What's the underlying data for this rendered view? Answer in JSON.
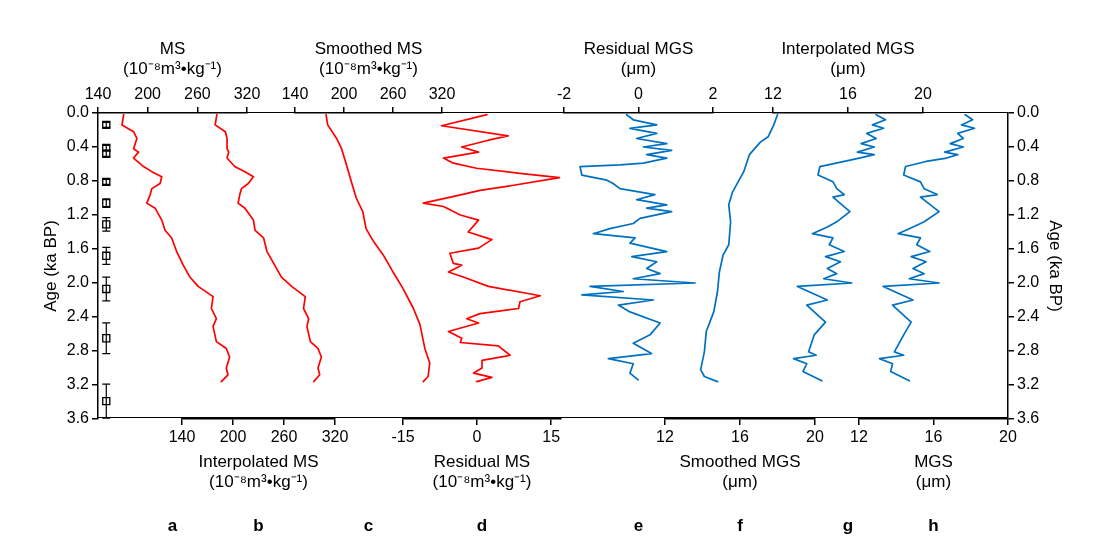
{
  "chart_data": [
    {
      "type": "line",
      "xlabel": "MS\n(10⁻⁸m³•kg⁻¹)",
      "xlim": [
        140,
        320
      ],
      "xticks": [
        140,
        200,
        260,
        320
      ],
      "ylabel": "Age (ka BP)",
      "ylim": [
        3.6,
        0
      ],
      "yticks": [
        {
          "value": 0,
          "label": "0.0"
        },
        0.4,
        0.8,
        1.2,
        1.6,
        {
          "value": 2,
          "label": "2.0"
        },
        2.4,
        2.8,
        3.2,
        3.6
      ],
      "annotations": [
        "a"
      ],
      "series": [
        {
          "color": "#ff0000",
          "x": [
            171,
            169,
            183,
            187,
            183,
            189,
            183,
            195,
            205,
            217,
            215,
            205,
            203,
            199,
            209,
            217,
            221,
            229,
            235,
            243,
            251,
            261,
            279,
            277,
            283,
            279,
            283,
            295,
            299,
            295,
            297,
            289
          ],
          "values": [
            0.02,
            0.14,
            0.22,
            0.3,
            0.42,
            0.46,
            0.53,
            0.63,
            0.69,
            0.75,
            0.83,
            0.89,
            0.96,
            1.06,
            1.12,
            1.26,
            1.38,
            1.47,
            1.63,
            1.79,
            1.93,
            2.04,
            2.16,
            2.3,
            2.42,
            2.51,
            2.69,
            2.77,
            2.87,
            3.0,
            3.08,
            3.16
          ]
        },
        {
          "type": "scatter",
          "marker": "square",
          "color": "#000000",
          "x": [
            150,
            150,
            150,
            150,
            150,
            150,
            150,
            150,
            150,
            150
          ],
          "values": [
            0.14,
            0.41,
            0.48,
            0.81,
            1.06,
            1.31,
            1.68,
            2.07,
            2.65,
            3.39
          ],
          "errors": [
            0.03,
            0.03,
            0.03,
            0.03,
            0.05,
            0.08,
            0.1,
            0.14,
            0.18,
            0.2
          ]
        }
      ]
    },
    {
      "type": "line",
      "color": "#ff0000",
      "tick_labels": "x",
      "xlabel": "Interpolated MS\n(10⁻⁸m³•kg⁻¹)",
      "xlim": [
        140,
        320
      ],
      "xticks": [
        140,
        200,
        260,
        320
      ],
      "ylim": [
        3.6,
        0
      ],
      "annotations": [
        "b"
      ],
      "x": [
        181,
        179,
        191,
        193,
        193,
        195,
        193,
        202,
        214,
        224,
        218,
        210,
        208,
        206,
        214,
        224,
        226,
        236,
        240,
        249,
        257,
        269,
        285,
        283,
        289,
        287,
        291,
        300,
        304,
        300,
        302,
        295
      ],
      "values": [
        0.02,
        0.14,
        0.22,
        0.3,
        0.42,
        0.46,
        0.53,
        0.63,
        0.69,
        0.75,
        0.83,
        0.89,
        0.96,
        1.06,
        1.12,
        1.26,
        1.38,
        1.47,
        1.63,
        1.79,
        1.93,
        2.04,
        2.16,
        2.3,
        2.42,
        2.51,
        2.69,
        2.77,
        2.87,
        3.0,
        3.08,
        3.16
      ]
    },
    {
      "type": "line",
      "color": "#ff0000",
      "tick_labels": "x",
      "xlabel": "Smoothed MS\n(10⁻⁸m³•kg⁻¹)",
      "xlim": [
        140,
        320
      ],
      "xticks": [
        140,
        200,
        260,
        320
      ],
      "ylim": [
        3.6,
        0
      ],
      "annotations": [
        "c"
      ],
      "x": [
        178,
        180,
        191,
        197,
        203,
        209,
        215,
        223,
        227,
        236,
        248,
        260,
        272,
        285,
        293,
        299,
        305,
        303,
        297
      ],
      "values": [
        0.02,
        0.14,
        0.3,
        0.42,
        0.61,
        0.81,
        1.0,
        1.16,
        1.36,
        1.51,
        1.67,
        1.87,
        2.06,
        2.3,
        2.49,
        2.77,
        2.94,
        3.1,
        3.16
      ]
    },
    {
      "type": "line",
      "color": "#ff0000",
      "tick_labels": "x",
      "xlabel": "Residual MS\n(10⁻⁸m³•kg⁻¹)",
      "xlim": [
        -15,
        17
      ],
      "xticks": [
        -15,
        0,
        15
      ],
      "ylim": [
        3.6,
        0
      ],
      "annotations": [
        "d"
      ],
      "x": [
        2.0,
        -7.2,
        6.3,
        2.3,
        -3.1,
        0.3,
        -6.8,
        -4.8,
        -0.1,
        8.7,
        16.7,
        7.4,
        0.6,
        -3.8,
        -10.9,
        -6.8,
        -3.4,
        0.3,
        -1.8,
        3.0,
        0.3,
        -5.5,
        -4.8,
        -3.1,
        -5.8,
        -2.8,
        2.3,
        12.8,
        8.7,
        8.4,
        0.6,
        -2.1,
        0.3,
        -5.8,
        -3.1,
        -3.4,
        4.3,
        6.7,
        1.0,
        1.0,
        -0.7,
        3.0,
        -0.1
      ],
      "values": [
        0.02,
        0.15,
        0.27,
        0.32,
        0.4,
        0.46,
        0.53,
        0.59,
        0.65,
        0.71,
        0.76,
        0.85,
        0.91,
        0.97,
        1.06,
        1.1,
        1.2,
        1.26,
        1.4,
        1.49,
        1.59,
        1.65,
        1.77,
        1.79,
        1.87,
        1.93,
        2.04,
        2.15,
        2.22,
        2.3,
        2.36,
        2.42,
        2.47,
        2.57,
        2.65,
        2.7,
        2.74,
        2.85,
        2.91,
        3.0,
        3.06,
        3.11,
        3.16
      ]
    },
    {
      "type": "line",
      "color": "#0070c0",
      "tick_labels": "x",
      "xlabel": "Residual MGS\n(μm)",
      "xlim": [
        -2,
        2
      ],
      "xticks": [
        -2,
        0,
        2
      ],
      "ylim": [
        3.6,
        0
      ],
      "annotations": [
        "e"
      ],
      "x": [
        -0.32,
        -0.14,
        0.49,
        -0.23,
        0.49,
        -0.05,
        0.76,
        0.13,
        0.89,
        0.22,
        0.76,
        0.13,
        -0.5,
        -1.57,
        -1.52,
        -0.85,
        -0.68,
        -0.5,
        0.44,
        -0.05,
        0.76,
        0.22,
        0.89,
        0.04,
        -0.14,
        -0.77,
        -1.21,
        -0.09,
        -0.23,
        0.76,
        -0.18,
        0.49,
        0.22,
        0.58,
        -0.14,
        1.52,
        -1.3,
        -0.41,
        -1.52,
        0.4,
        -0.54,
        -0.23,
        0.58,
        0.31,
        -0.14,
        0.35,
        -0.81,
        -0.14,
        -0.23,
        -0.01
      ],
      "values": [
        0.02,
        0.08,
        0.14,
        0.18,
        0.24,
        0.3,
        0.36,
        0.4,
        0.44,
        0.49,
        0.53,
        0.59,
        0.61,
        0.63,
        0.73,
        0.79,
        0.83,
        0.89,
        0.96,
        1.02,
        1.08,
        1.12,
        1.16,
        1.24,
        1.3,
        1.36,
        1.42,
        1.47,
        1.53,
        1.63,
        1.69,
        1.75,
        1.83,
        1.89,
        1.95,
        2.0,
        2.04,
        2.1,
        2.14,
        2.2,
        2.26,
        2.34,
        2.47,
        2.61,
        2.71,
        2.83,
        2.89,
        2.95,
        3.06,
        3.14
      ]
    },
    {
      "type": "line",
      "color": "#0070c0",
      "tick_labels": "x",
      "xlabel": "Smoothed MGS\n(μm)",
      "xlim": [
        12,
        20
      ],
      "xticks": [
        12,
        16,
        20
      ],
      "ylim": [
        3.6,
        0
      ],
      "annotations": [
        "f"
      ],
      "x": [
        18.0,
        17.8,
        17.5,
        17.1,
        16.5,
        16.2,
        15.6,
        15.4,
        15.5,
        15.4,
        15.1,
        14.9,
        14.8,
        14.6,
        14.2,
        14.1,
        13.9,
        14.1,
        14.8
      ],
      "values": [
        0.02,
        0.14,
        0.28,
        0.34,
        0.49,
        0.69,
        0.93,
        1.08,
        1.28,
        1.55,
        1.67,
        1.87,
        2.1,
        2.34,
        2.57,
        2.81,
        3.02,
        3.1,
        3.16
      ]
    },
    {
      "type": "line",
      "color": "#0070c0",
      "tick_labels": "x",
      "xlabel": "Interpolated MGS\n(μm)",
      "xlim": [
        12,
        20
      ],
      "xticks": [
        12,
        16,
        20
      ],
      "ylim": [
        3.6,
        0
      ],
      "annotations": [
        "g"
      ],
      "x": [
        17.5,
        18.0,
        17.3,
        17.9,
        17.0,
        17.5,
        16.7,
        17.4,
        16.5,
        17.4,
        16.6,
        15.8,
        14.5,
        14.4,
        15.2,
        15.4,
        15.8,
        15.2,
        16.1,
        15.4,
        14.9,
        14.1,
        15.2,
        15.0,
        15.8,
        14.8,
        15.6,
        14.9,
        15.4,
        14.7,
        16.2,
        13.3,
        14.9,
        13.8,
        14.8,
        14.2,
        13.9,
        14.3,
        13.1,
        13.8,
        13.6,
        14.6
      ],
      "values": [
        0.02,
        0.08,
        0.14,
        0.18,
        0.24,
        0.3,
        0.36,
        0.4,
        0.46,
        0.49,
        0.53,
        0.57,
        0.63,
        0.73,
        0.81,
        0.89,
        0.96,
        0.99,
        1.16,
        1.28,
        1.34,
        1.42,
        1.47,
        1.55,
        1.63,
        1.69,
        1.75,
        1.83,
        1.89,
        1.95,
        2.0,
        2.04,
        2.2,
        2.26,
        2.46,
        2.61,
        2.81,
        2.85,
        2.89,
        2.95,
        3.04,
        3.15
      ]
    },
    {
      "type": "line",
      "color": "#0070c0",
      "xlabel": "MGS\n(μm)",
      "xlim": [
        12,
        20
      ],
      "xticks": [
        12,
        16,
        20
      ],
      "ylim": [
        3.6,
        0
      ],
      "y2label": "Age (ka BP)",
      "y2lim": [
        3.6,
        0
      ],
      "y2ticks": [
        {
          "value": 0,
          "label": "0.0"
        },
        0.4,
        0.8,
        1.2,
        1.6,
        {
          "value": 2,
          "label": "2.0"
        },
        2.4,
        2.8,
        3.2,
        3.6
      ],
      "annotations": [
        "h"
      ],
      "x": [
        17.7,
        18.1,
        17.5,
        18.2,
        17.3,
        17.6,
        16.9,
        17.6,
        16.6,
        17.3,
        16.7,
        15.6,
        14.5,
        14.4,
        15.3,
        15.5,
        16.2,
        15.3,
        16.3,
        15.5,
        14.9,
        14.1,
        15.3,
        15.1,
        15.8,
        14.8,
        15.6,
        14.9,
        15.5,
        14.7,
        16.3,
        13.3,
        14.9,
        13.8,
        14.8,
        14.4,
        13.9,
        14.4,
        13.1,
        13.8,
        13.7,
        14.7
      ],
      "values": [
        0.02,
        0.08,
        0.14,
        0.18,
        0.24,
        0.3,
        0.36,
        0.4,
        0.46,
        0.49,
        0.53,
        0.57,
        0.63,
        0.73,
        0.81,
        0.89,
        0.96,
        0.99,
        1.16,
        1.28,
        1.34,
        1.42,
        1.47,
        1.55,
        1.63,
        1.69,
        1.75,
        1.83,
        1.89,
        1.95,
        2.0,
        2.04,
        2.2,
        2.26,
        2.46,
        2.61,
        2.81,
        2.85,
        2.89,
        2.95,
        3.04,
        3.15
      ]
    }
  ]
}
